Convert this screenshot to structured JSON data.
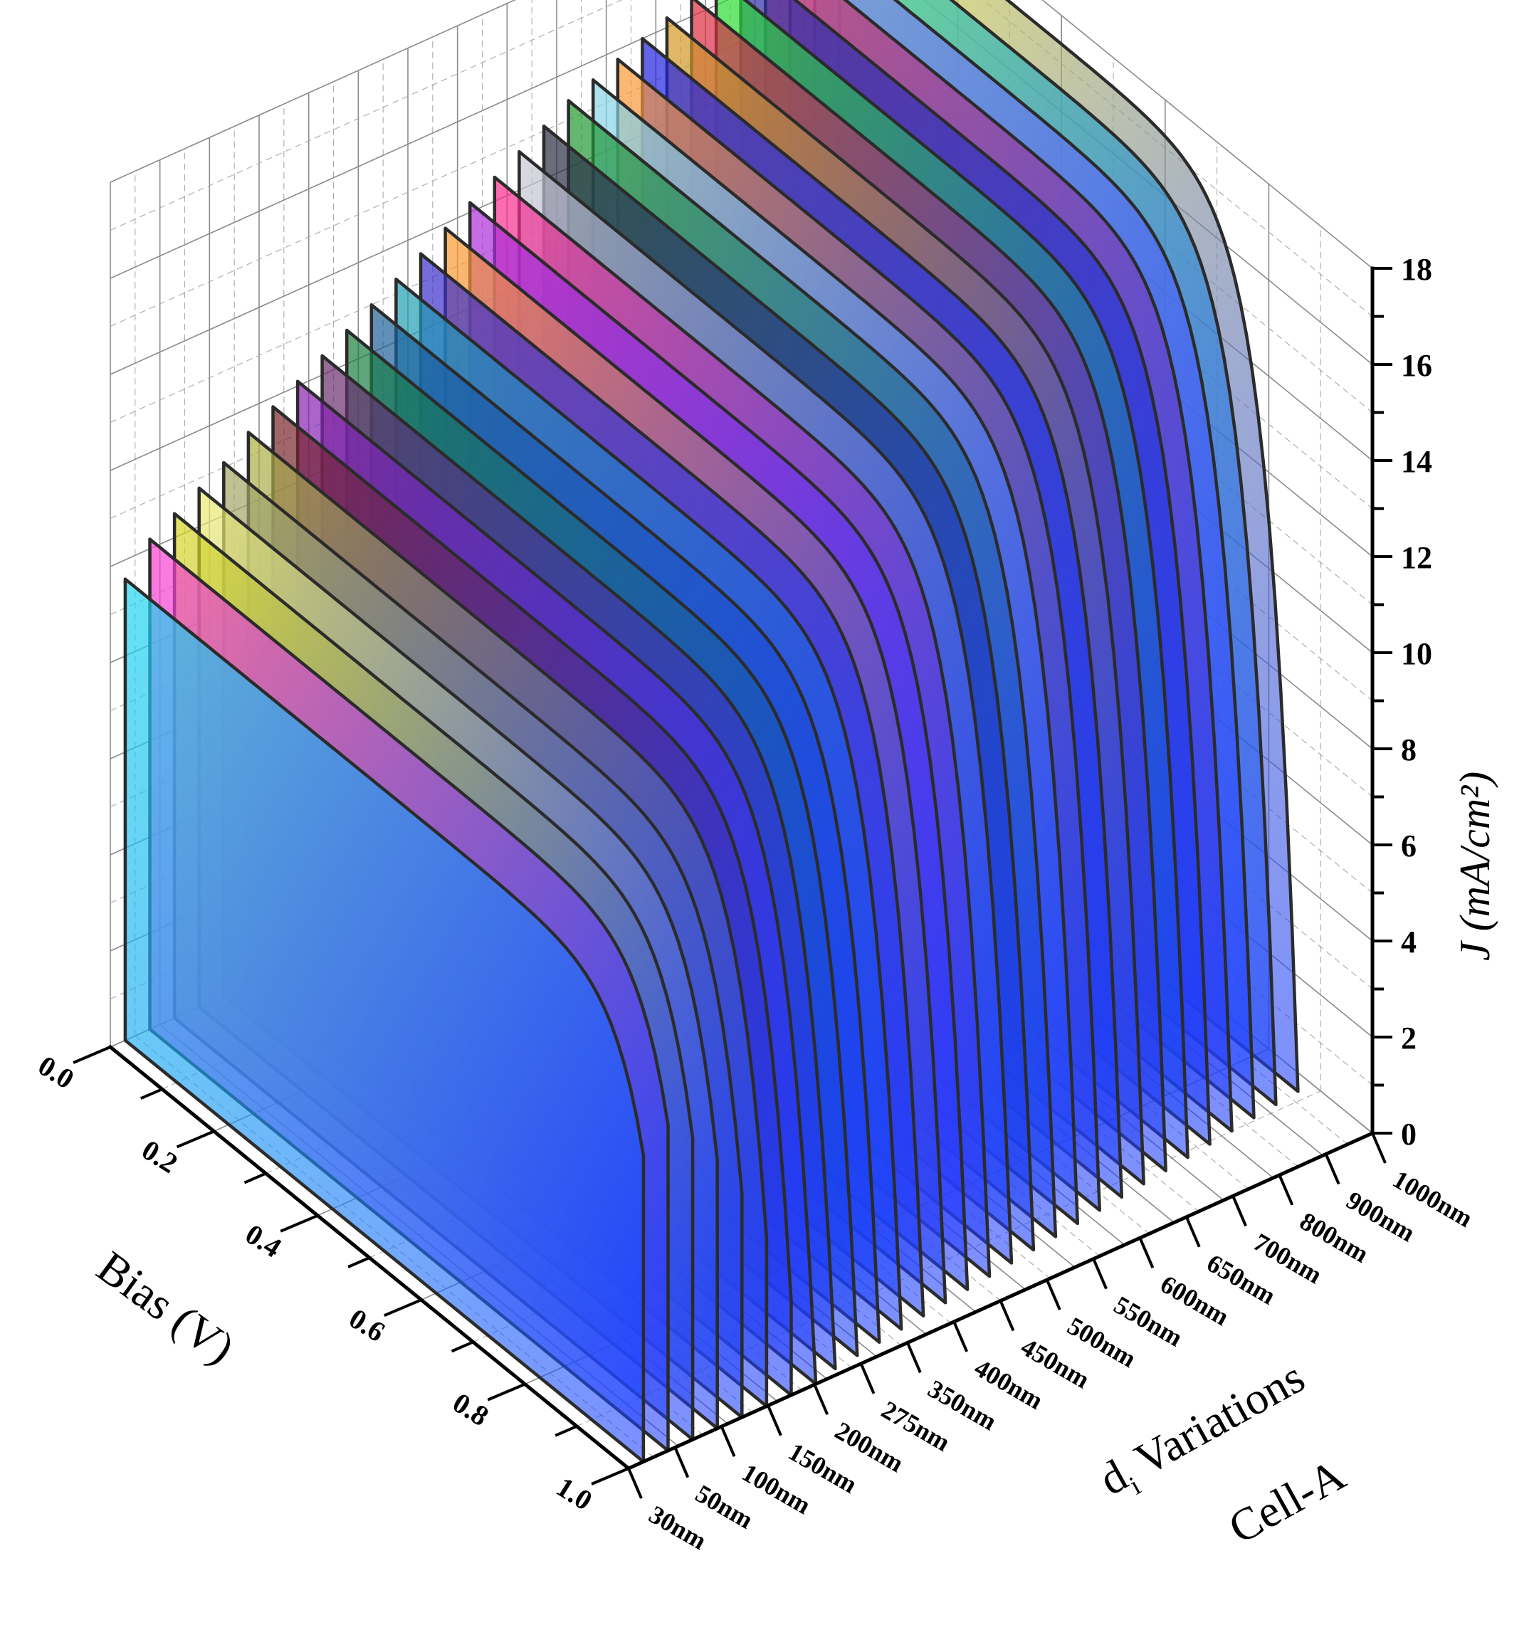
{
  "chart_data": {
    "type": "3d-waterfall",
    "annotation": "Cell-A",
    "bias_axis": {
      "title": "Bias (V)",
      "range": [
        0.0,
        1.0
      ],
      "ticks": [
        "0.0",
        "0.2",
        "0.4",
        "0.6",
        "0.8",
        "1.0"
      ]
    },
    "thickness_axis": {
      "title_main": "d",
      "title_sub": "i",
      "title_rest": " Variations",
      "categories": [
        "30nm",
        "50nm",
        "100nm",
        "150nm",
        "200nm",
        "275nm",
        "350nm",
        "400nm",
        "450nm",
        "500nm",
        "550nm",
        "600nm",
        "650nm",
        "700nm",
        "800nm",
        "900nm",
        "1000nm"
      ]
    },
    "current_axis": {
      "title": "J (mA/cm²)",
      "range": [
        0,
        18
      ],
      "ticks": [
        "0",
        "2",
        "4",
        "6",
        "8",
        "10",
        "12",
        "14",
        "16",
        "18"
      ]
    },
    "slice_count": 30,
    "series": [
      {
        "jsc": 9.6,
        "voc": 1.06,
        "color": "#1fd8ee"
      },
      {
        "jsc": 10.2,
        "voc": 1.06,
        "color": "#ff3fcf"
      },
      {
        "jsc": 10.5,
        "voc": 1.05,
        "color": "#d8d820"
      },
      {
        "jsc": 10.8,
        "voc": 1.04,
        "color": "#ecec6e"
      },
      {
        "jsc": 11.1,
        "voc": 1.03,
        "color": "#a8a860"
      },
      {
        "jsc": 11.5,
        "voc": 1.02,
        "color": "#b0b040"
      },
      {
        "jsc": 11.8,
        "voc": 1.01,
        "color": "#7a2222"
      },
      {
        "jsc": 12.1,
        "voc": 1.0,
        "color": "#8a1fb0"
      },
      {
        "jsc": 12.4,
        "voc": 0.99,
        "color": "#6a2a66"
      },
      {
        "jsc": 12.7,
        "voc": 0.985,
        "color": "#17803a"
      },
      {
        "jsc": 13.0,
        "voc": 0.98,
        "color": "#1a5f95"
      },
      {
        "jsc": 13.3,
        "voc": 0.975,
        "color": "#1fa0b0"
      },
      {
        "jsc": 13.6,
        "voc": 0.97,
        "color": "#3a2cc8"
      },
      {
        "jsc": 13.9,
        "voc": 0.965,
        "color": "#ff9a2a"
      },
      {
        "jsc": 14.2,
        "voc": 0.96,
        "color": "#b02ad8"
      },
      {
        "jsc": 14.5,
        "voc": 0.955,
        "color": "#ff2a8a"
      },
      {
        "jsc": 14.8,
        "voc": 0.95,
        "color": "#c8c8d0"
      },
      {
        "jsc": 15.1,
        "voc": 0.945,
        "color": "#2a2a3a"
      },
      {
        "jsc": 15.4,
        "voc": 0.94,
        "color": "#1f9a2a"
      },
      {
        "jsc": 15.6,
        "voc": 0.935,
        "color": "#8ad8e6"
      },
      {
        "jsc": 15.8,
        "voc": 0.93,
        "color": "#ff9a30"
      },
      {
        "jsc": 16.0,
        "voc": 0.925,
        "color": "#1f1fe0"
      },
      {
        "jsc": 16.2,
        "voc": 0.92,
        "color": "#d89a1f"
      },
      {
        "jsc": 16.4,
        "voc": 0.915,
        "color": "#e02a3a"
      },
      {
        "jsc": 16.6,
        "voc": 0.91,
        "color": "#2ae02a"
      },
      {
        "jsc": 16.8,
        "voc": 0.905,
        "color": "#2a2aa0"
      },
      {
        "jsc": 17.0,
        "voc": 0.9,
        "color": "#e0305a"
      },
      {
        "jsc": 17.2,
        "voc": 0.895,
        "color": "#8a8af0"
      },
      {
        "jsc": 17.5,
        "voc": 0.89,
        "color": "#30e0a0"
      },
      {
        "jsc": 17.8,
        "voc": 0.885,
        "color": "#e8e030"
      }
    ]
  }
}
